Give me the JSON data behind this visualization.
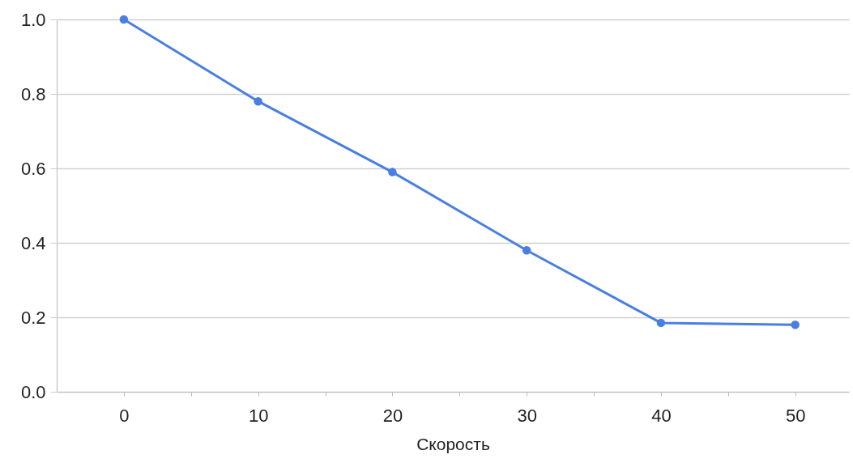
{
  "chart_data": {
    "type": "line",
    "xlabel": "Скорость",
    "x": [
      0,
      10,
      20,
      30,
      40,
      50
    ],
    "series": [
      {
        "color": "#4a7fe2",
        "values": [
          1.0,
          0.78,
          0.59,
          0.38,
          0.185,
          0.18
        ]
      }
    ],
    "xlim": [
      -5,
      54
    ],
    "xticks": [
      0,
      {
        "value": 5,
        "label": null
      },
      10,
      {
        "value": 15,
        "label": null
      },
      20,
      {
        "value": 25,
        "label": null
      },
      30,
      {
        "value": 35,
        "label": null
      },
      40,
      {
        "value": 45,
        "label": null
      },
      50
    ],
    "ylim": [
      0,
      1
    ],
    "yticks": [
      {
        "value": 0,
        "label": "0.0"
      },
      0.2,
      0.4,
      0.6,
      0.8,
      {
        "value": 1,
        "label": "1.0"
      }
    ],
    "grid": "y",
    "marker": "circle",
    "line_style": "solid",
    "legend": false
  }
}
